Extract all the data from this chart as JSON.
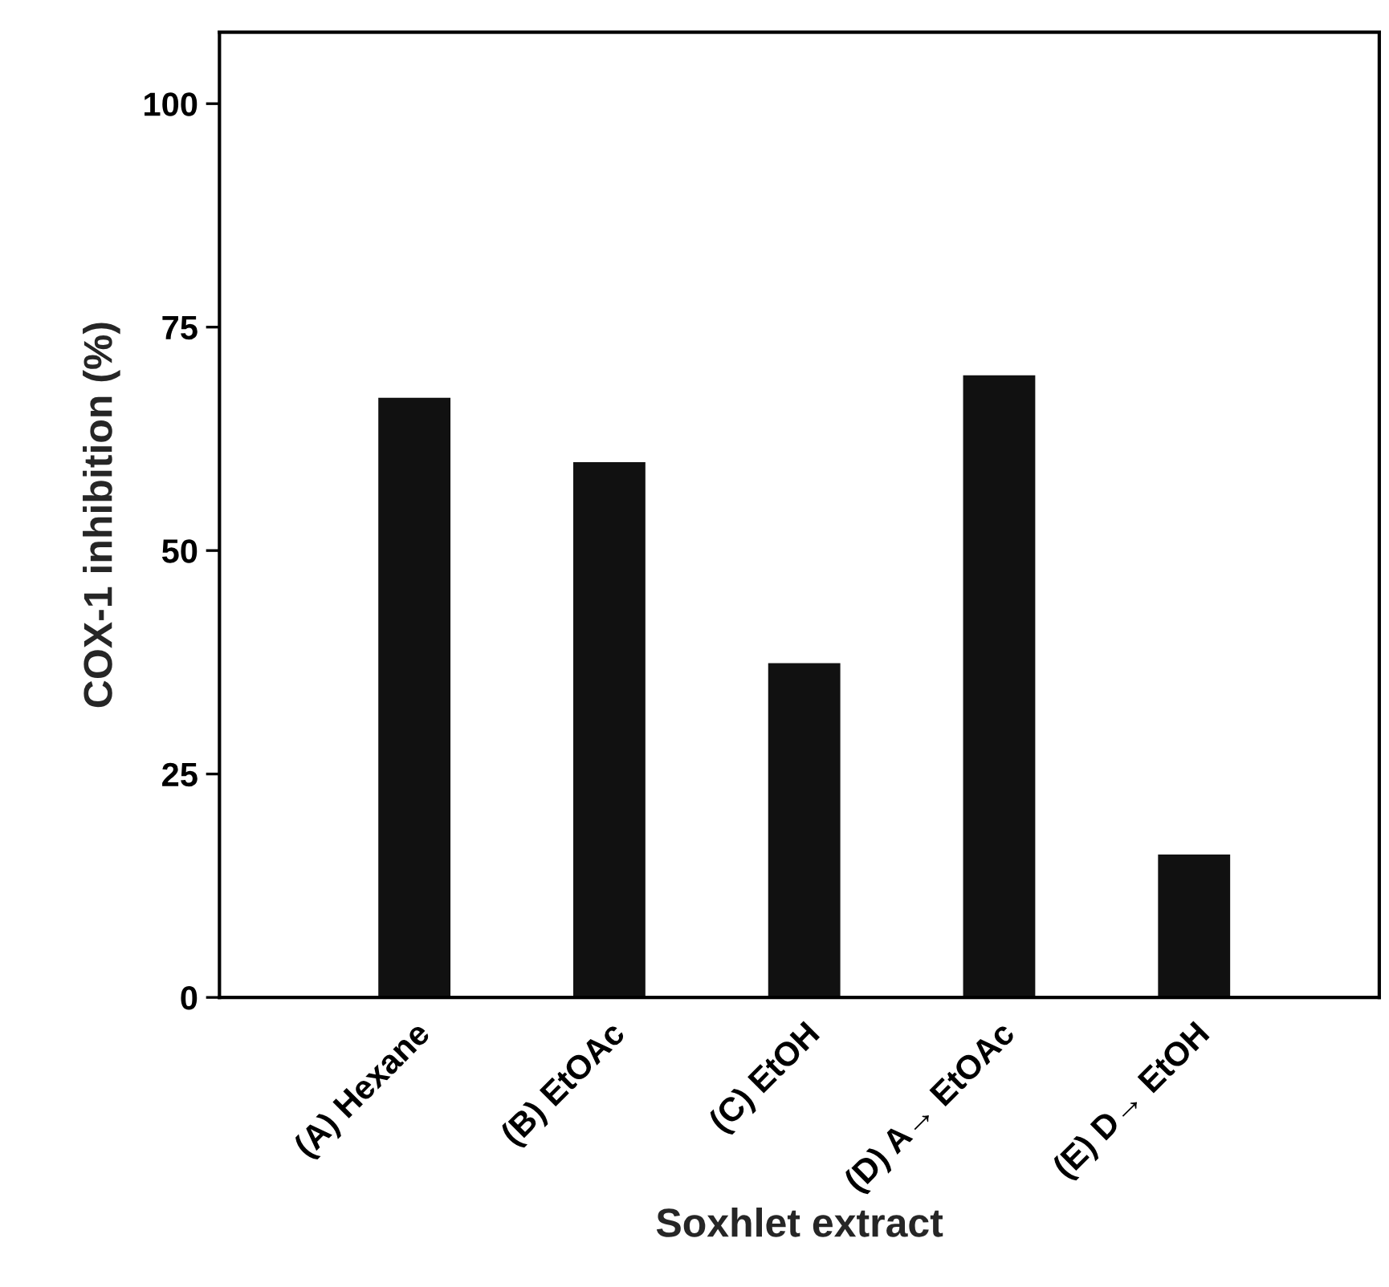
{
  "chart_data": {
    "type": "bar",
    "xlabel": "Soxhlet extract",
    "ylabel": "COX-1 inhibition (%)",
    "categories": [
      "(A) Hexane",
      "(B) EtOAc",
      "(C) EtOH",
      "(D) A→ EtOAc",
      "(E) D→ EtOH"
    ],
    "values": [
      67.1,
      59.9,
      37.4,
      69.6,
      16.0
    ],
    "color": "#111111",
    "ylim": [
      0,
      108
    ],
    "yticks": [
      0,
      25,
      50,
      75,
      100
    ],
    "grid": false
  }
}
